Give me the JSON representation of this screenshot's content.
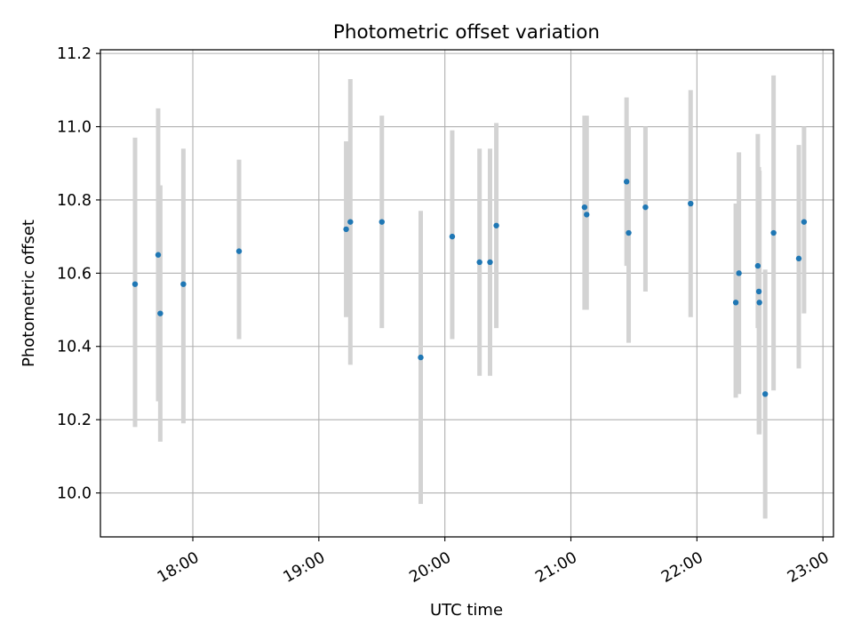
{
  "chart_data": {
    "type": "scatter",
    "title": "Photometric offset variation",
    "xlabel": "UTC time",
    "ylabel": "Photometric offset",
    "x_unit": "UTC time of day (HH:MM)",
    "xlim": [
      "17:16",
      "23:05"
    ],
    "ylim": [
      9.88,
      11.21
    ],
    "x_ticks": [
      "18:00",
      "19:00",
      "20:00",
      "21:00",
      "22:00",
      "23:00"
    ],
    "y_ticks": [
      10.0,
      10.2,
      10.4,
      10.6,
      10.8,
      11.0,
      11.2
    ],
    "y_tick_labels": [
      "10.0",
      "10.2",
      "10.4",
      "10.6",
      "10.8",
      "11.0",
      "11.2"
    ],
    "grid": true,
    "colors": {
      "point": "#1f77b4",
      "errorbar": "#d3d3d3",
      "grid": "#b0b0b0"
    },
    "series": [
      {
        "points": [
          {
            "x": "17:32:30",
            "y": 10.57,
            "lo": 10.18,
            "hi": 10.97
          },
          {
            "x": "17:43:30",
            "y": 10.65,
            "lo": 10.25,
            "hi": 11.05
          },
          {
            "x": "17:44:30",
            "y": 10.49,
            "lo": 10.14,
            "hi": 10.84
          },
          {
            "x": "17:55:30",
            "y": 10.57,
            "lo": 10.19,
            "hi": 10.94
          },
          {
            "x": "18:22:00",
            "y": 10.66,
            "lo": 10.42,
            "hi": 10.91
          },
          {
            "x": "19:13:00",
            "y": 10.72,
            "lo": 10.48,
            "hi": 10.96
          },
          {
            "x": "19:15:00",
            "y": 10.74,
            "lo": 10.35,
            "hi": 11.13
          },
          {
            "x": "19:30:00",
            "y": 10.74,
            "lo": 10.45,
            "hi": 11.03
          },
          {
            "x": "19:48:30",
            "y": 10.37,
            "lo": 9.97,
            "hi": 10.77
          },
          {
            "x": "20:03:30",
            "y": 10.7,
            "lo": 10.42,
            "hi": 10.99
          },
          {
            "x": "20:16:30",
            "y": 10.63,
            "lo": 10.32,
            "hi": 10.94
          },
          {
            "x": "20:21:30",
            "y": 10.63,
            "lo": 10.32,
            "hi": 10.94
          },
          {
            "x": "20:24:30",
            "y": 10.73,
            "lo": 10.45,
            "hi": 11.01
          },
          {
            "x": "21:06:30",
            "y": 10.78,
            "lo": 10.5,
            "hi": 11.03
          },
          {
            "x": "21:07:30",
            "y": 10.76,
            "lo": 10.5,
            "hi": 11.03
          },
          {
            "x": "21:26:30",
            "y": 10.85,
            "lo": 10.62,
            "hi": 11.08
          },
          {
            "x": "21:27:30",
            "y": 10.71,
            "lo": 10.41,
            "hi": 11.0
          },
          {
            "x": "21:35:30",
            "y": 10.78,
            "lo": 10.55,
            "hi": 11.0
          },
          {
            "x": "21:57:00",
            "y": 10.79,
            "lo": 10.48,
            "hi": 11.1
          },
          {
            "x": "22:18:30",
            "y": 10.52,
            "lo": 10.26,
            "hi": 10.79
          },
          {
            "x": "22:20:00",
            "y": 10.6,
            "lo": 10.27,
            "hi": 10.93
          },
          {
            "x": "22:29:00",
            "y": 10.62,
            "lo": 10.45,
            "hi": 10.98
          },
          {
            "x": "22:29:30",
            "y": 10.55,
            "lo": 10.16,
            "hi": 10.89
          },
          {
            "x": "22:29:45",
            "y": 10.52,
            "lo": 10.16,
            "hi": 10.88
          },
          {
            "x": "22:32:30",
            "y": 10.27,
            "lo": 9.93,
            "hi": 10.61
          },
          {
            "x": "22:36:30",
            "y": 10.71,
            "lo": 10.28,
            "hi": 11.14
          },
          {
            "x": "22:48:30",
            "y": 10.64,
            "lo": 10.34,
            "hi": 10.95
          },
          {
            "x": "22:51:00",
            "y": 10.74,
            "lo": 10.49,
            "hi": 11.0
          }
        ]
      }
    ]
  }
}
